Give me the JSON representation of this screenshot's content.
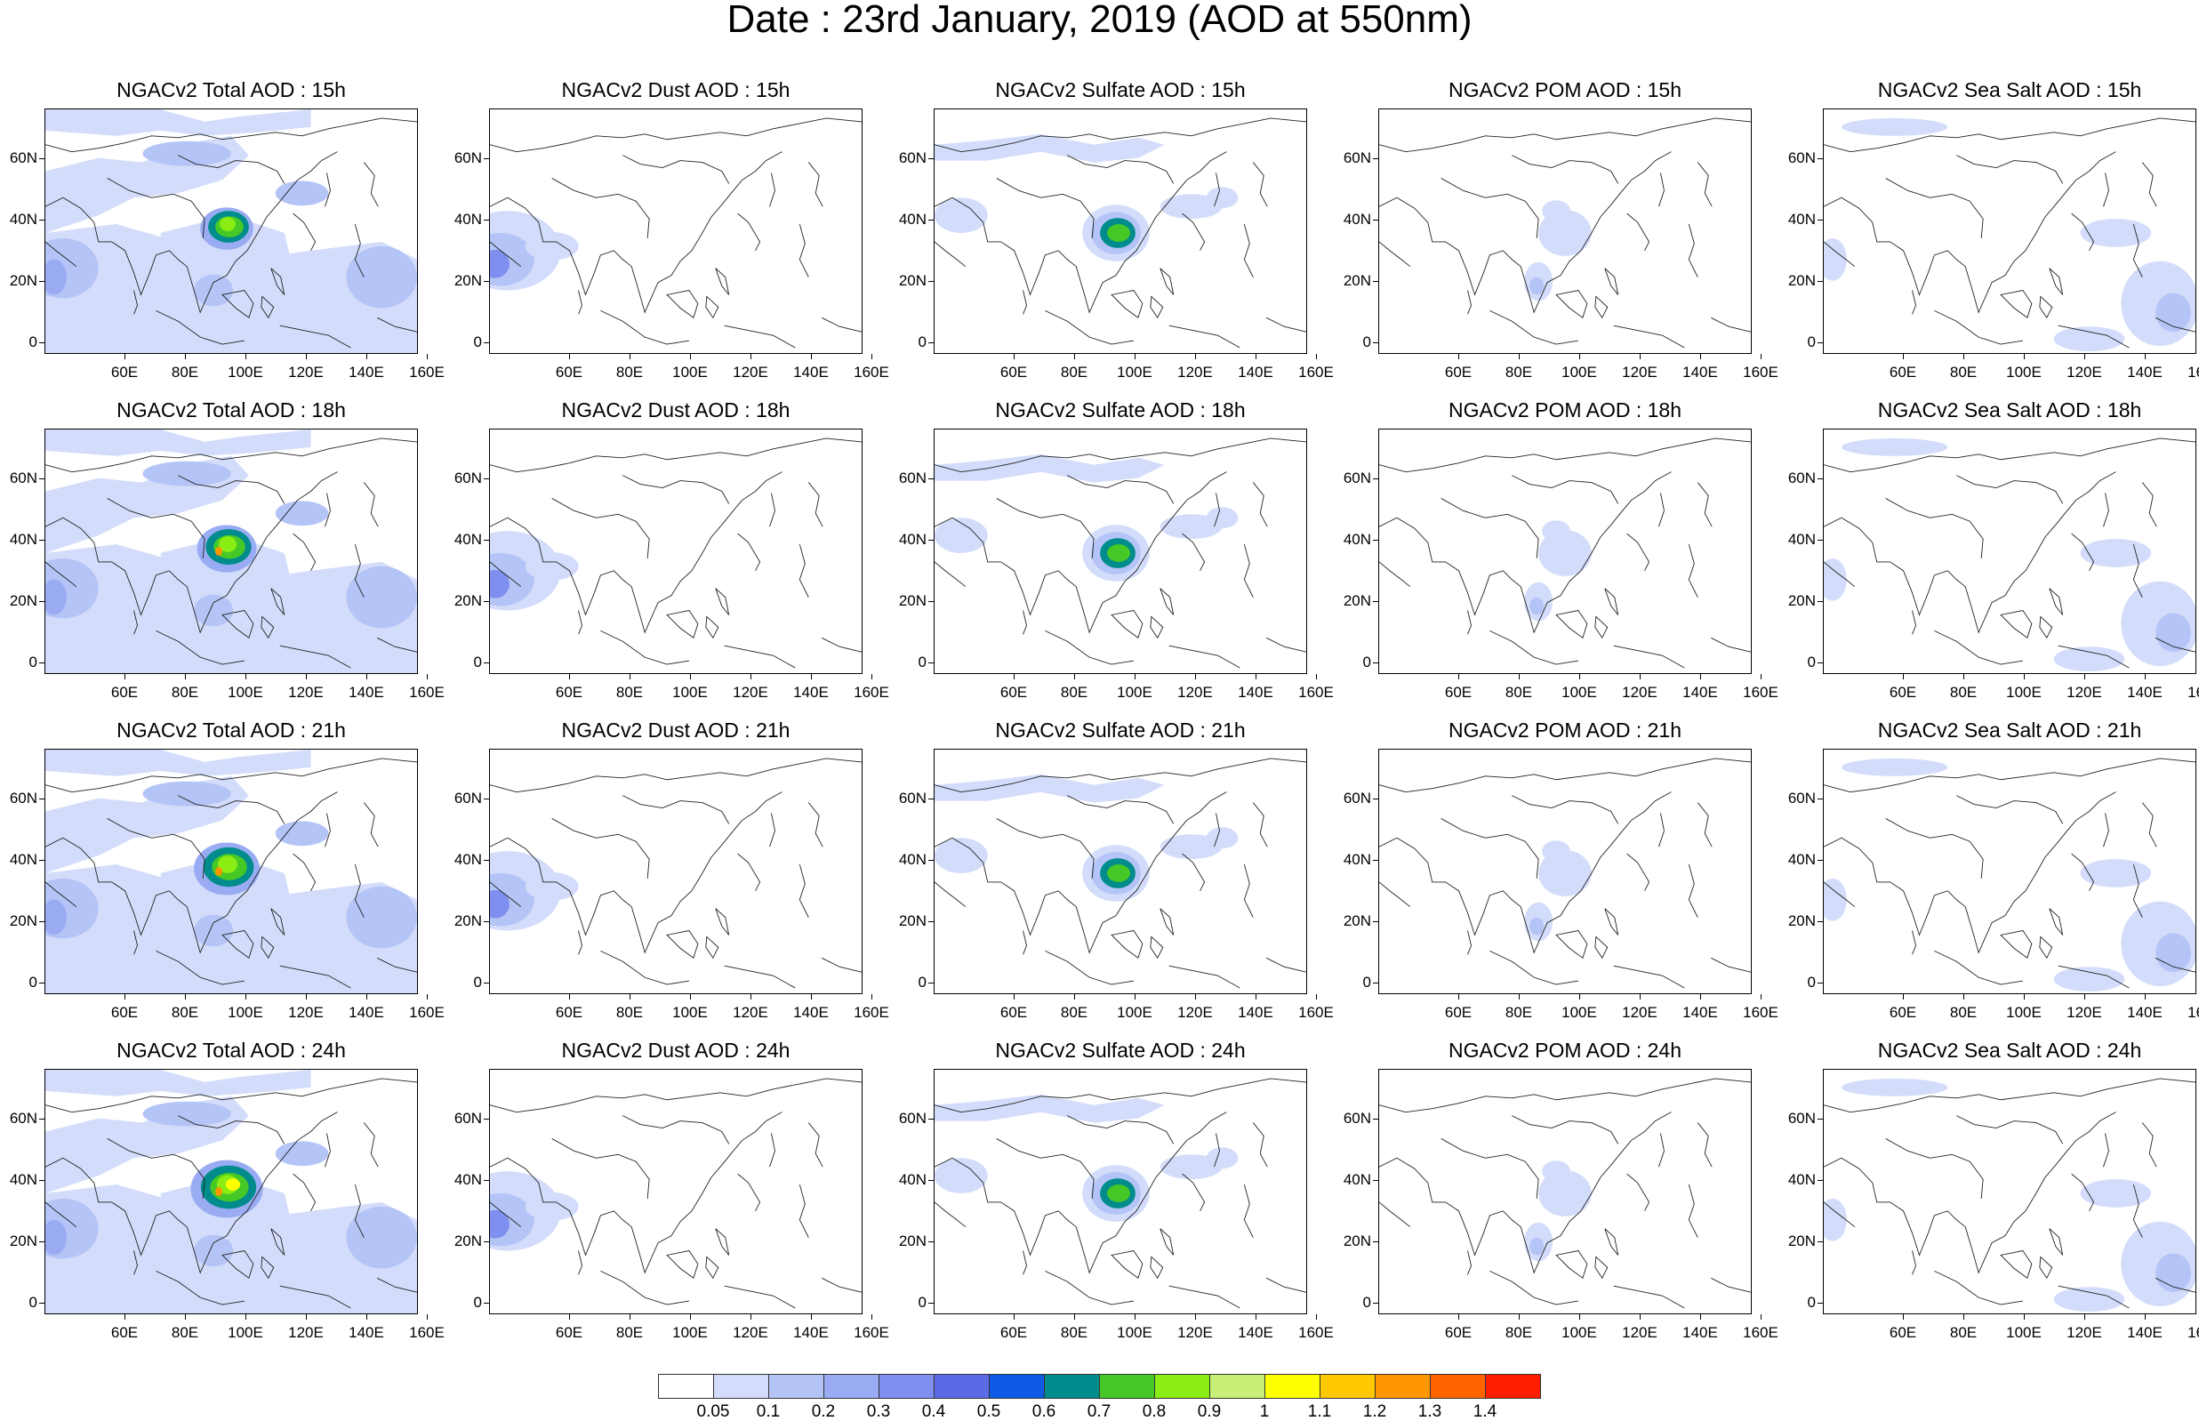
{
  "title": "Date : 23rd January, 2019 (AOD at 550nm)",
  "axes": {
    "lat_ticks": [
      "60N",
      "40N",
      "20N",
      "0"
    ],
    "lon_ticks": [
      "60E",
      "80E",
      "100E",
      "120E",
      "140E",
      "160E"
    ]
  },
  "rows": [
    {
      "panels": [
        {
          "title": "NGACv2 Total AOD : 15h",
          "species": "total"
        },
        {
          "title": "NGACv2 Dust AOD : 15h",
          "species": "dust"
        },
        {
          "title": "NGACv2 Sulfate AOD : 15h",
          "species": "sulfate"
        },
        {
          "title": "NGACv2 POM AOD : 15h",
          "species": "pom"
        },
        {
          "title": "NGACv2 Sea Salt AOD : 15h",
          "species": "seasalt"
        }
      ]
    },
    {
      "panels": [
        {
          "title": "NGACv2 Total AOD : 18h",
          "species": "total"
        },
        {
          "title": "NGACv2 Dust AOD : 18h",
          "species": "dust"
        },
        {
          "title": "NGACv2 Sulfate AOD : 18h",
          "species": "sulfate"
        },
        {
          "title": "NGACv2 POM AOD : 18h",
          "species": "pom"
        },
        {
          "title": "NGACv2 Sea Salt AOD : 18h",
          "species": "seasalt"
        }
      ]
    },
    {
      "panels": [
        {
          "title": "NGACv2 Total AOD : 21h",
          "species": "total"
        },
        {
          "title": "NGACv2 Dust AOD : 21h",
          "species": "dust"
        },
        {
          "title": "NGACv2 Sulfate AOD : 21h",
          "species": "sulfate"
        },
        {
          "title": "NGACv2 POM AOD : 21h",
          "species": "pom"
        },
        {
          "title": "NGACv2 Sea Salt AOD : 21h",
          "species": "seasalt"
        }
      ]
    },
    {
      "panels": [
        {
          "title": "NGACv2 Total AOD : 24h",
          "species": "total"
        },
        {
          "title": "NGACv2 Dust AOD : 24h",
          "species": "dust"
        },
        {
          "title": "NGACv2 Sulfate AOD : 24h",
          "species": "sulfate"
        },
        {
          "title": "NGACv2 POM AOD : 24h",
          "species": "pom"
        },
        {
          "title": "NGACv2 Sea Salt  AOD : 24h",
          "species": "seasalt"
        }
      ]
    }
  ],
  "colorbar": {
    "labels": [
      "0.05",
      "0.1",
      "0.2",
      "0.3",
      "0.4",
      "0.5",
      "0.6",
      "0.7",
      "0.8",
      "0.9",
      "1",
      "1.1",
      "1.2",
      "1.3",
      "1.4"
    ],
    "colors": [
      "#ffffff",
      "#d3dcfa",
      "#b4c4f6",
      "#99acf3",
      "#7e8ff0",
      "#5d6ae8",
      "#0e5ce6",
      "#008c8c",
      "#46c826",
      "#8aed14",
      "#c8f078",
      "#ffff00",
      "#ffc800",
      "#ff9600",
      "#ff6400",
      "#ff1e00"
    ]
  }
}
